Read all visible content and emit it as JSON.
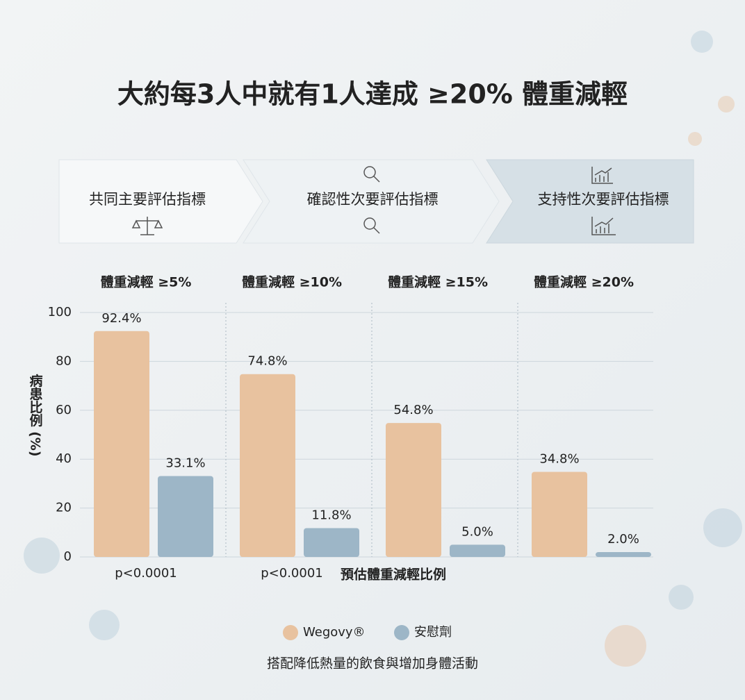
{
  "chart_data": {
    "type": "bar",
    "title": "大約每3人中就有1人達成 ≥20% 體重減輕",
    "steps": [
      "共同主要評估指標",
      "確認性次要評估指標",
      "支持性次要評估指標"
    ],
    "categories": [
      "體重減輕 ≥5%",
      "體重減輕 ≥10%",
      "體重減輕 ≥15%",
      "體重減輕 ≥20%"
    ],
    "series": [
      {
        "name": "Wegovy®",
        "color": "#e8c29f",
        "values": [
          92.4,
          74.8,
          54.8,
          34.8
        ],
        "value_labels": [
          "92.4%",
          "74.8%",
          "54.8%",
          "34.8%"
        ]
      },
      {
        "name": "安慰劑",
        "color": "#9db6c7",
        "values": [
          33.1,
          11.8,
          5.0,
          2.0
        ],
        "value_labels": [
          "33.1%",
          "11.8%",
          "5.0%",
          "2.0%"
        ]
      }
    ],
    "p_values": [
      "p<0.0001",
      "p<0.0001"
    ],
    "y_label": "病患比例 (%)",
    "x_label": "預估體重減輕比例",
    "footnote": "搭配降低熱量的飲食與增加身體活動",
    "ylim": [
      0,
      100
    ],
    "yticks": [
      0,
      20,
      40,
      60,
      80,
      100
    ],
    "grid": true
  }
}
